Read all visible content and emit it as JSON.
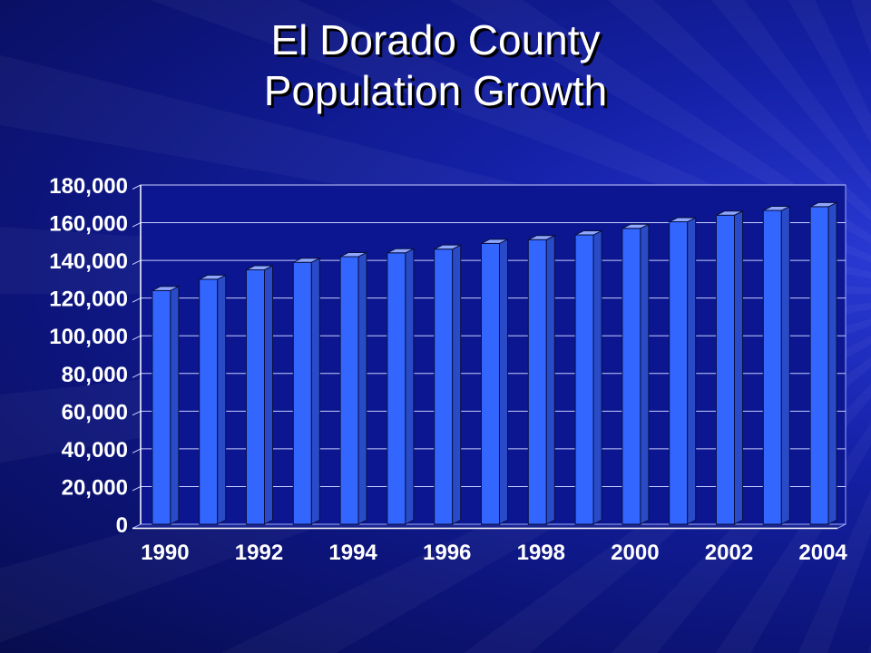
{
  "title_line1": "El Dorado County",
  "title_line2": "Population Growth",
  "chart_data": {
    "type": "bar",
    "title": "El Dorado County Population Growth",
    "xlabel": "",
    "ylabel": "",
    "categories": [
      "1990",
      "1991",
      "1992",
      "1993",
      "1994",
      "1995",
      "1996",
      "1997",
      "1998",
      "1999",
      "2000",
      "2001",
      "2002",
      "2003",
      "2004"
    ],
    "x_tick_labels": [
      "1990",
      "1992",
      "1994",
      "1996",
      "1998",
      "2000",
      "2002",
      "2004"
    ],
    "y_tick_labels": [
      "0",
      "20,000",
      "40,000",
      "60,000",
      "80,000",
      "100,000",
      "120,000",
      "140,000",
      "160,000",
      "180,000"
    ],
    "values": [
      124000,
      130000,
      135000,
      139000,
      142000,
      144000,
      146000,
      149000,
      151000,
      153500,
      157000,
      160500,
      164000,
      166500,
      168500
    ],
    "ylim": [
      0,
      180000
    ],
    "grid": true,
    "legend": "none",
    "bar_color": "#3366ff"
  }
}
